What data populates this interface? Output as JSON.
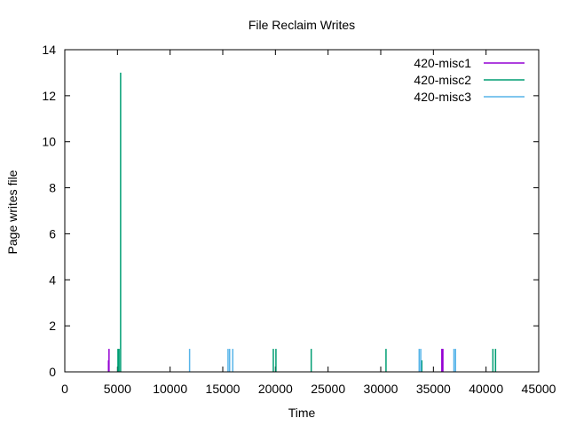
{
  "chart_data": {
    "type": "bar",
    "title": "File Reclaim Writes",
    "xlabel": "Time",
    "ylabel": "Page writes file",
    "xlim": [
      0,
      45000
    ],
    "ylim": [
      0,
      14
    ],
    "x_ticks": [
      0,
      5000,
      10000,
      15000,
      20000,
      25000,
      30000,
      35000,
      40000,
      45000
    ],
    "y_ticks": [
      0,
      2,
      4,
      6,
      8,
      10,
      12,
      14
    ],
    "grid": false,
    "legend_position": "top-right",
    "series": [
      {
        "name": "420-misc1",
        "color": "#9400d3",
        "points": [
          {
            "x": 4150,
            "y": 0.5
          },
          {
            "x": 4200,
            "y": 1
          },
          {
            "x": 35800,
            "y": 1
          },
          {
            "x": 35850,
            "y": 1
          },
          {
            "x": 35900,
            "y": 1
          }
        ]
      },
      {
        "name": "420-misc2",
        "color": "#009e73",
        "points": [
          {
            "x": 5050,
            "y": 1
          },
          {
            "x": 5150,
            "y": 1
          },
          {
            "x": 5300,
            "y": 13
          },
          {
            "x": 19800,
            "y": 1
          },
          {
            "x": 20050,
            "y": 1
          },
          {
            "x": 23400,
            "y": 1
          },
          {
            "x": 30500,
            "y": 1
          },
          {
            "x": 33900,
            "y": 0.5
          },
          {
            "x": 40650,
            "y": 1
          },
          {
            "x": 40900,
            "y": 1
          }
        ]
      },
      {
        "name": "420-misc3",
        "color": "#56b4e9",
        "points": [
          {
            "x": 11850,
            "y": 1
          },
          {
            "x": 15500,
            "y": 1
          },
          {
            "x": 15650,
            "y": 1
          },
          {
            "x": 15950,
            "y": 1
          },
          {
            "x": 33650,
            "y": 1
          },
          {
            "x": 33800,
            "y": 1
          },
          {
            "x": 36950,
            "y": 1
          },
          {
            "x": 37100,
            "y": 1
          }
        ]
      }
    ]
  }
}
